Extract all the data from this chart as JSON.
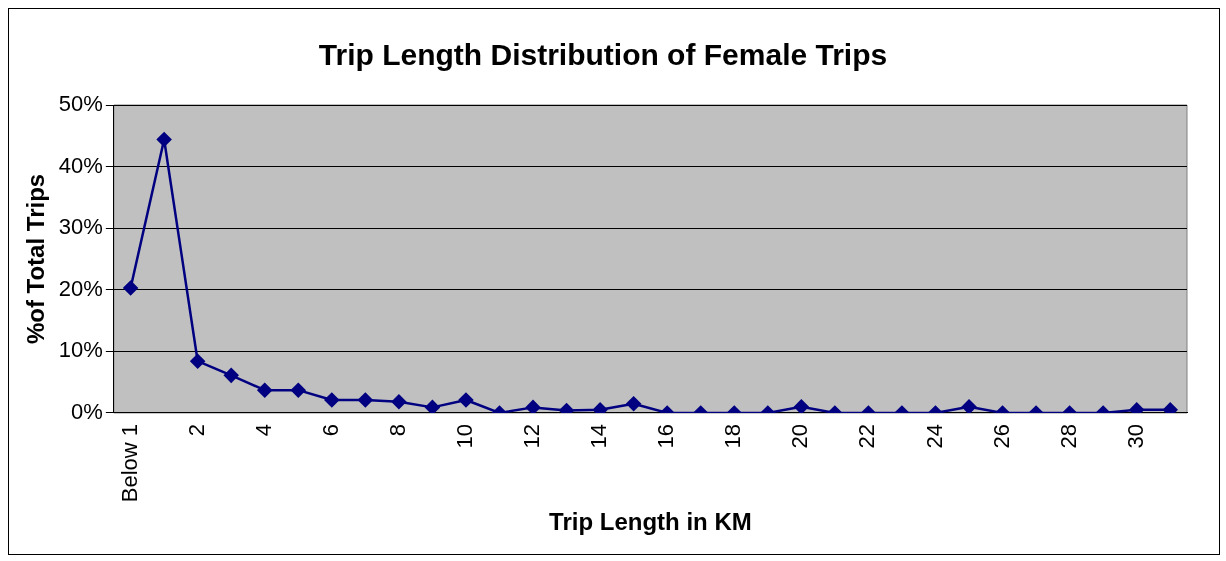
{
  "chart_data": {
    "type": "line",
    "title": "Trip Length Distribution of Female Trips",
    "xlabel": "Trip Length in KM",
    "ylabel": "%of Total Trips",
    "categories": [
      "Below 1",
      null,
      "2",
      null,
      "4",
      null,
      "6",
      null,
      "8",
      null,
      "10",
      null,
      "12",
      null,
      "14",
      null,
      "16",
      null,
      "18",
      null,
      "20",
      null,
      "22",
      null,
      "24",
      null,
      "26",
      null,
      "28",
      null,
      "30",
      null
    ],
    "series": [
      {
        "color": "#000080",
        "values": [
          20.3,
          44.4,
          8.4,
          6.1,
          3.7,
          3.7,
          2.1,
          2.1,
          1.8,
          0.9,
          2.1,
          0,
          0.9,
          0.4,
          0.5,
          1.5,
          0,
          0,
          0,
          0,
          1,
          0,
          0,
          0,
          0,
          1,
          0,
          0,
          0,
          0,
          0.5,
          0.5
        ]
      }
    ],
    "ylim": [
      0,
      50
    ],
    "yticks": [
      {
        "value": 0,
        "label": "0%"
      },
      {
        "value": 10,
        "label": "10%"
      },
      {
        "value": 20,
        "label": "20%"
      },
      {
        "value": 30,
        "label": "30%"
      },
      {
        "value": 40,
        "label": "40%"
      },
      {
        "value": 50,
        "label": "50%"
      }
    ],
    "grid": "y",
    "legend": false,
    "marker": "diamond",
    "line_style": "solid"
  }
}
